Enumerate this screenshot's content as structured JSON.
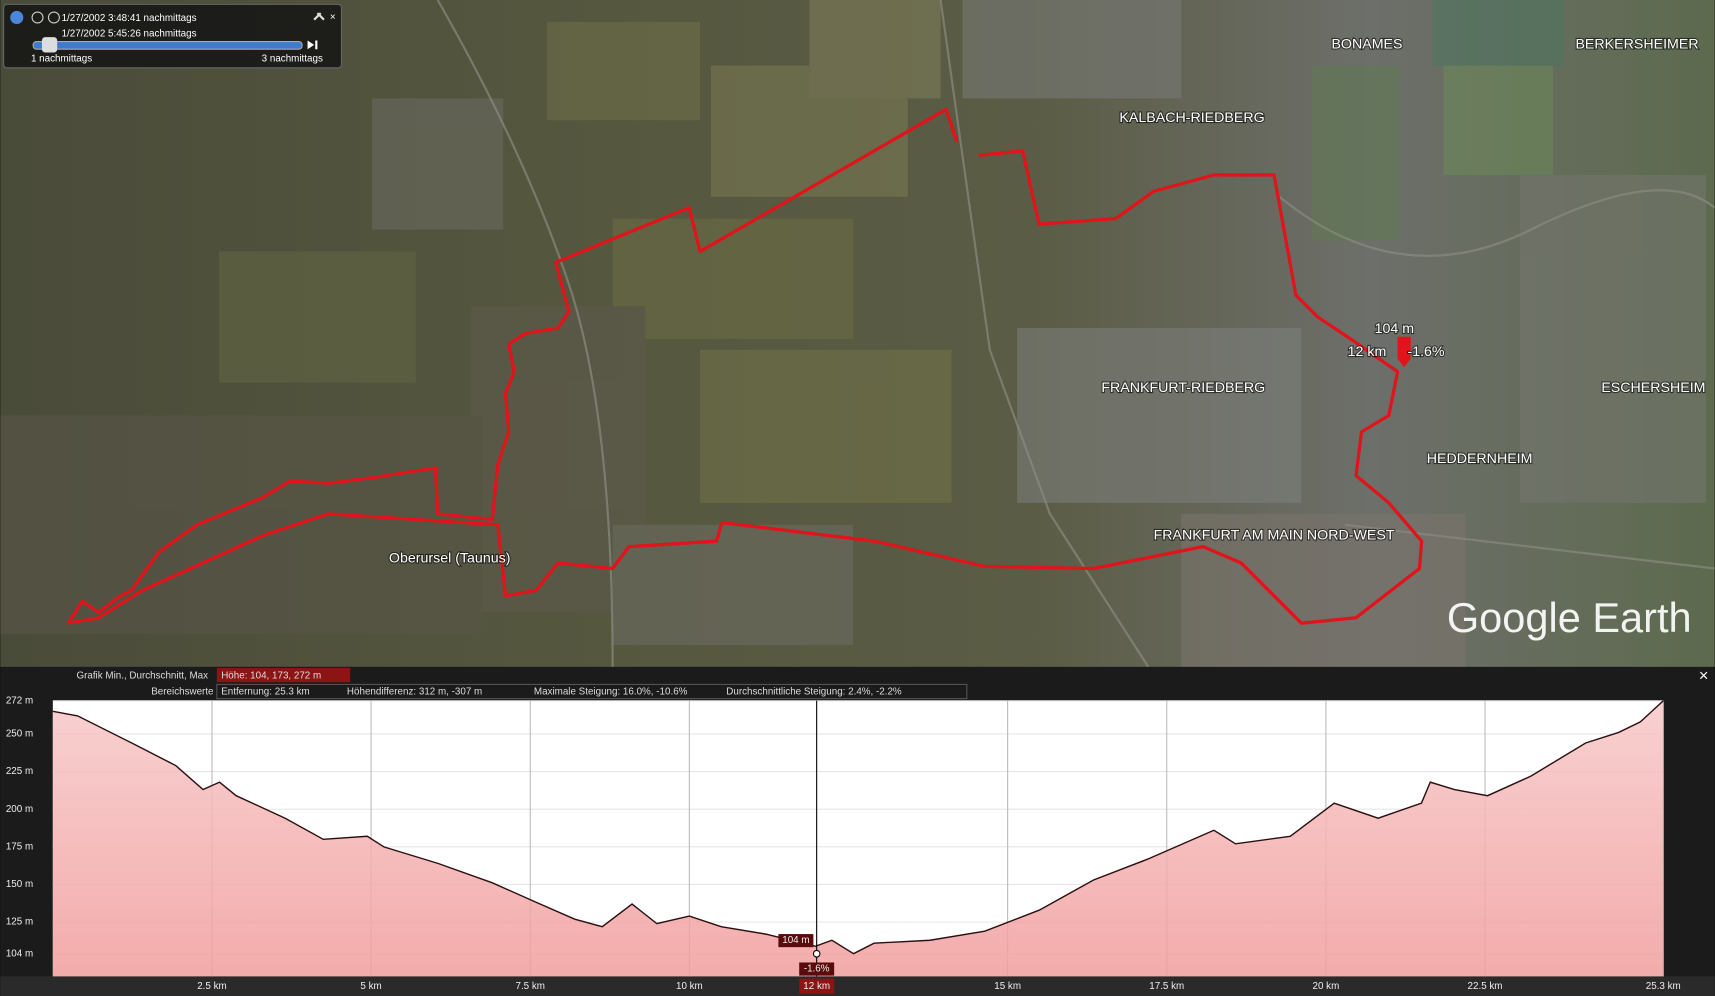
{
  "time_slider": {
    "start": "1/27/2002   3:48:41 nachmittags",
    "end": "1/27/2002   5:45:26 nachmittags",
    "scale_left": "1 nachmittags",
    "scale_right": "3 nachmittags"
  },
  "map": {
    "labels": [
      "BONAMES",
      "BERKERSHEIMER",
      "KALBACH-RIEDBERG",
      "FRANKFURT-RIEDBERG",
      "ESCHERSHEIM",
      "HEDDERNHEIM",
      "FRANKFURT AM MAIN NORD-WEST",
      "Oberursel (Taunus)"
    ],
    "logo": "Google Earth"
  },
  "stats": {
    "graph_label": "Grafik Min., Durchschnitt, Max",
    "elevation": "Höhe: 104, 173, 272 m",
    "range_label": "Bereichswerte",
    "distance": "Entfernung: 25.3 km",
    "elevation_diff": "Höhendifferenz: 312 m, -307 m",
    "max_slope": "Maximale Steigung: 16.0%, -10.6%",
    "avg_slope": "Durchschnittliche Steigung: 2.4%, -2.2%",
    "close": "×"
  },
  "chart_data": {
    "type": "area",
    "x": [
      0,
      0.39,
      1.24,
      1.93,
      2.36,
      2.62,
      2.88,
      3.65,
      4.25,
      4.94,
      5.2,
      6.05,
      6.91,
      7.6,
      8.2,
      8.63,
      9.1,
      9.49,
      10.0,
      10.5,
      11.2,
      11.98,
      12.24,
      12.58,
      12.9,
      13.78,
      14.64,
      15.5,
      16.35,
      17.21,
      18.24,
      18.58,
      19.44,
      20.13,
      20.82,
      21.5,
      21.64,
      22.02,
      22.54,
      23.22,
      24.08,
      24.6,
      24.94,
      25.3
    ],
    "values": [
      265,
      262,
      244,
      229,
      213,
      218,
      209,
      194,
      180,
      182,
      175,
      164,
      151,
      138,
      127,
      122,
      137,
      124,
      129,
      122,
      117,
      109,
      113,
      104,
      111,
      113,
      119,
      133,
      153,
      167,
      186,
      177,
      182,
      204,
      194,
      204,
      218,
      213,
      209,
      222,
      244,
      251,
      258,
      272
    ],
    "color": "#2a1010",
    "fill": "#f4b4b4",
    "xlim": [
      0,
      25.3
    ],
    "ylim": [
      89,
      272
    ],
    "xticks": [
      {
        "value": 2.5,
        "label": "2.5 km"
      },
      {
        "value": 5,
        "label": "5 km"
      },
      {
        "value": 7.5,
        "label": "7.5 km"
      },
      {
        "value": 10,
        "label": "10 km"
      },
      {
        "value": 15,
        "label": "15 km"
      },
      {
        "value": 17.5,
        "label": "17.5 km"
      },
      {
        "value": 20,
        "label": "20 km"
      },
      {
        "value": 22.5,
        "label": "22.5 km"
      },
      {
        "value": 25.3,
        "label": "25.3 km"
      }
    ],
    "yticks": [
      {
        "value": 104,
        "label": "104 m"
      },
      {
        "value": 125,
        "label": "125 m"
      },
      {
        "value": 150,
        "label": "150 m"
      },
      {
        "value": 175,
        "label": "175 m"
      },
      {
        "value": 200,
        "label": "200 m"
      },
      {
        "value": 225,
        "label": "225 m"
      },
      {
        "value": 250,
        "label": "250 m"
      },
      {
        "value": 272,
        "label": "272 m"
      }
    ],
    "grid": true,
    "cursor": {
      "x": 12,
      "x_label": "12 km",
      "y": 104,
      "y_label": "104 m",
      "slope": -1.6,
      "slope_label": "-1.6%"
    }
  }
}
